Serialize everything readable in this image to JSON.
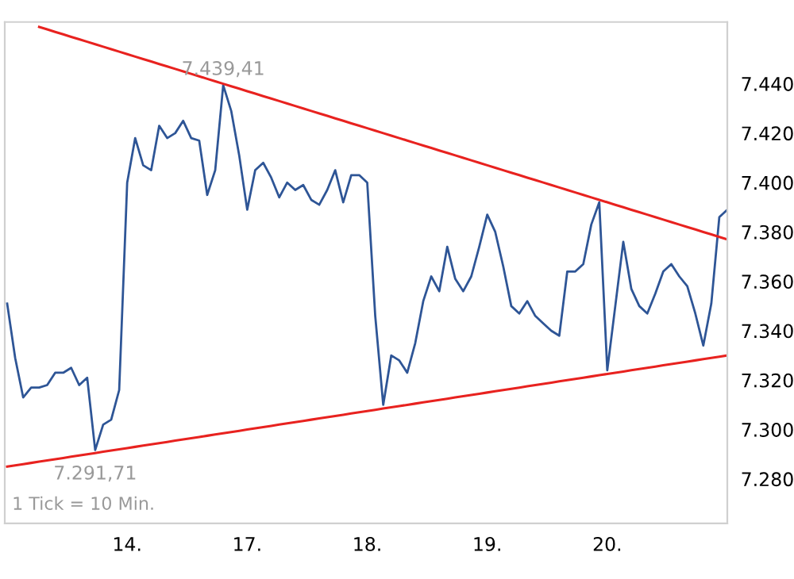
{
  "chart_data": {
    "type": "line",
    "categories": [
      null,
      null,
      null,
      null,
      null,
      null,
      null,
      null,
      null,
      null,
      null,
      null,
      null,
      null,
      null,
      "14.",
      null,
      null,
      null,
      null,
      null,
      null,
      null,
      null,
      null,
      null,
      null,
      null,
      null,
      null,
      "17.",
      null,
      null,
      null,
      null,
      null,
      null,
      null,
      null,
      null,
      null,
      null,
      null,
      null,
      null,
      "18.",
      null,
      null,
      null,
      null,
      null,
      null,
      null,
      null,
      null,
      null,
      null,
      null,
      null,
      null,
      "19.",
      null,
      null,
      null,
      null,
      null,
      null,
      null,
      null,
      null,
      null,
      null,
      null,
      null,
      null,
      "20.",
      null,
      null,
      null,
      null,
      null,
      null,
      null,
      null,
      null,
      null,
      null,
      null,
      null,
      null,
      null
    ],
    "series": [
      {
        "color": "#2e5596",
        "values": [
          7351,
          7329,
          7313,
          7317,
          7317,
          7318,
          7323,
          7323,
          7325,
          7318,
          7321,
          7291.71,
          7302,
          7304,
          7316,
          7400,
          7418,
          7407,
          7405,
          7423,
          7418,
          7420,
          7425,
          7418,
          7417,
          7395,
          7405,
          7439.41,
          7429,
          7411,
          7389,
          7405,
          7408,
          7402,
          7394,
          7400,
          7397,
          7399,
          7393,
          7391,
          7397,
          7405,
          7392,
          7403,
          7403,
          7400,
          7346,
          7310,
          7330,
          7328,
          7323,
          7335,
          7352,
          7362,
          7356,
          7374,
          7361,
          7356,
          7362,
          7374,
          7387,
          7380,
          7366,
          7350,
          7347,
          7352,
          7346,
          7343,
          7340,
          7338,
          7364,
          7364,
          7367,
          7383,
          7392,
          7324,
          7350,
          7376,
          7357,
          7350,
          7347,
          7355,
          7364,
          7367,
          7362,
          7358,
          7347,
          7334,
          7351,
          7386,
          7389
        ]
      },
      {
        "type": "line",
        "color": "#e8221f",
        "values": [
          null,
          null,
          null,
          null,
          7463,
          7462,
          7461,
          7460,
          7459,
          7458,
          7457,
          7456,
          7455,
          7454,
          7453,
          7452,
          7451,
          7450,
          7449,
          7448,
          7447,
          7446,
          7445,
          7444,
          7443,
          7442,
          7441,
          7440,
          7439,
          7438,
          7437,
          7436,
          7435,
          7434,
          7433,
          7432,
          7431,
          7430,
          7429,
          7428,
          7427,
          7426,
          7425,
          7424,
          7423,
          7422,
          7421,
          7420,
          7419,
          7418,
          7417,
          7416,
          7415,
          7414,
          7413,
          7412,
          7411,
          7410,
          7409,
          7408,
          7407,
          7406,
          7405,
          7404,
          7403,
          7402,
          7401,
          7400,
          7399,
          7398,
          7397,
          7396,
          7395,
          7394,
          7393,
          7392,
          7391,
          7390,
          7389,
          7388,
          7387,
          7386,
          7385,
          7384,
          7383,
          7382,
          7381,
          7380,
          7379,
          7378,
          7377
        ]
      },
      {
        "type": "line",
        "color": "#e8221f",
        "values": [
          7285,
          7285.5,
          7286,
          7286.5,
          7287,
          7287.5,
          7288,
          7288.5,
          7289,
          7289.5,
          7290,
          7290.5,
          7291,
          7291.5,
          7292,
          7292.5,
          7293,
          7293.5,
          7294,
          7294.5,
          7295,
          7295.5,
          7296,
          7296.5,
          7297,
          7297.5,
          7298,
          7298.5,
          7299,
          7299.5,
          7300,
          7300.5,
          7301,
          7301.5,
          7302,
          7302.5,
          7303,
          7303.5,
          7304,
          7304.5,
          7305,
          7305.5,
          7306,
          7306.5,
          7307,
          7307.5,
          7308,
          7308.5,
          7309,
          7309.5,
          7310,
          7310.5,
          7311,
          7311.5,
          7312,
          7312.5,
          7313,
          7313.5,
          7314,
          7314.5,
          7315,
          7315.5,
          7316,
          7316.5,
          7317,
          7317.5,
          7318,
          7318.5,
          7319,
          7319.5,
          7320,
          7320.5,
          7321,
          7321.5,
          7322,
          7322.5,
          7323,
          7323.5,
          7324,
          7324.5,
          7325,
          7325.5,
          7326,
          7326.5,
          7327,
          7327.5,
          7328,
          7328.5,
          7329,
          7329.5,
          7330
        ]
      }
    ],
    "ylim": [
      7262,
      7465
    ],
    "yticks": [
      {
        "value": 7280,
        "label": "7.280"
      },
      {
        "value": 7300,
        "label": "7.300"
      },
      {
        "value": 7320,
        "label": "7.320"
      },
      {
        "value": 7340,
        "label": "7.340"
      },
      {
        "value": 7360,
        "label": "7.360"
      },
      {
        "value": 7380,
        "label": "7.380"
      },
      {
        "value": 7400,
        "label": "7.400"
      },
      {
        "value": 7420,
        "label": "7.420"
      },
      {
        "value": 7440,
        "label": "7.440"
      }
    ],
    "annotations": [
      {
        "text": "7.439,41",
        "y": 7439.41
      },
      {
        "text": "7.291,71",
        "y": 7291.71
      },
      "1 Tick = 10 Min."
    ],
    "grid": false,
    "marker": "none",
    "line_style": "solid"
  }
}
